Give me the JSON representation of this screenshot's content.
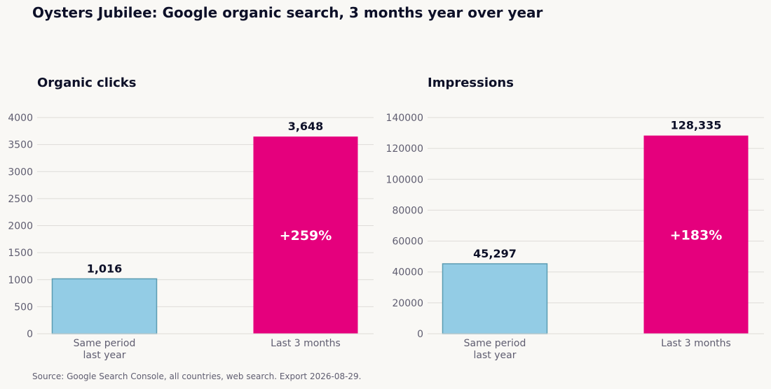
{
  "title": "Oysters Jubilee: Google organic search, 3 months year over year",
  "source": "Source: Google Search Console, all countries, web search. Export 2026-08-29.",
  "colors": {
    "baseline_bar": "#93cce5",
    "baseline_edge": "#5b9cb2",
    "current_bar": "#e5007d",
    "grid": "#dedcd8",
    "tick_text": "#5f5d70",
    "value_text": "#0d1028",
    "change_text": "#ffffff"
  },
  "chart_data": [
    {
      "type": "bar",
      "title": "Organic clicks",
      "categories": [
        [
          "Same period",
          "last year"
        ],
        [
          "Last 3 months"
        ]
      ],
      "values": [
        1016,
        3648
      ],
      "value_labels": [
        "1,016",
        "3,648"
      ],
      "change_label": "+259%",
      "ylim": [
        0,
        4000
      ],
      "yticks": [
        0,
        500,
        1000,
        1500,
        2000,
        2500,
        3000,
        3500,
        4000
      ],
      "grid": true
    },
    {
      "type": "bar",
      "title": "Impressions",
      "categories": [
        [
          "Same period",
          "last year"
        ],
        [
          "Last 3 months"
        ]
      ],
      "values": [
        45297,
        128335
      ],
      "value_labels": [
        "45,297",
        "128,335"
      ],
      "change_label": "+183%",
      "ylim": [
        0,
        140000
      ],
      "yticks": [
        0,
        20000,
        40000,
        60000,
        80000,
        100000,
        120000,
        140000
      ],
      "grid": true
    }
  ]
}
